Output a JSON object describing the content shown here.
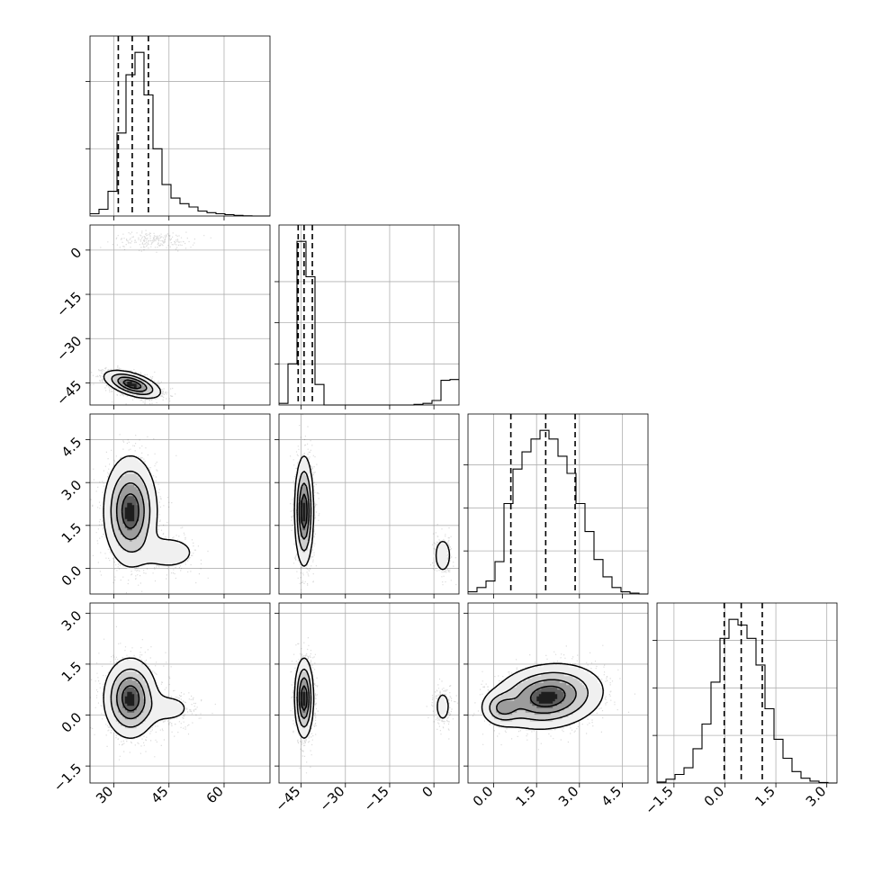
{
  "chart_data": {
    "type": "corner",
    "colors": {
      "line": "#000000",
      "grid": "#b0b0b0",
      "points": "#000000",
      "shade_dark": "#000000",
      "shade_light": "#f2f2f2"
    },
    "grid": true,
    "parameters": [
      {
        "index": 0,
        "range": [
          23.5,
          72.5
        ],
        "ticks": [
          30,
          45,
          60
        ],
        "tick_labels": [
          "30",
          "45",
          "60"
        ]
      },
      {
        "index": 1,
        "range": [
          -52.5,
          8.5
        ],
        "ticks": [
          -45,
          -30,
          -15,
          0
        ],
        "tick_labels": [
          "−45",
          "−30",
          "−15",
          "0"
        ]
      },
      {
        "index": 2,
        "range": [
          -0.9,
          5.4
        ],
        "ticks": [
          0.0,
          1.5,
          3.0,
          4.5
        ],
        "tick_labels": [
          "0.0",
          "1.5",
          "3.0",
          "4.5"
        ]
      },
      {
        "index": 3,
        "range": [
          -2.0,
          3.3
        ],
        "ticks": [
          -1.5,
          0.0,
          1.5,
          3.0
        ],
        "tick_labels": [
          "−1.5",
          "0.0",
          "1.5",
          "3.0"
        ]
      }
    ],
    "histograms": [
      {
        "param": 0,
        "bin_edges": [
          23.5,
          25.95,
          28.4,
          30.85,
          33.3,
          35.75,
          38.2,
          40.65,
          43.1,
          45.55,
          48.0,
          50.45,
          52.9,
          55.35,
          57.8,
          60.25,
          62.7,
          65.15,
          67.6,
          70.05,
          72.5
        ],
        "counts": [
          10,
          30,
          110,
          370,
          630,
          730,
          540,
          300,
          140,
          80,
          55,
          40,
          22,
          15,
          10,
          6,
          3,
          1,
          0,
          0
        ],
        "quantiles": [
          31.2,
          35.0,
          39.4
        ],
        "y_ticks": [
          300,
          600
        ]
      },
      {
        "param": 1,
        "bin_edges": [
          -52.5,
          -49.45,
          -46.4,
          -43.35,
          -40.3,
          -37.25,
          -34.2,
          -31.15,
          -28.1,
          -25.05,
          -22.0,
          -18.95,
          -15.9,
          -12.85,
          -9.8,
          -6.75,
          -3.7,
          -0.65,
          2.4,
          5.45,
          8.5
        ],
        "counts": [
          20,
          500,
          1990,
          1560,
          250,
          0,
          0,
          0,
          0,
          0,
          0,
          0,
          0,
          0,
          0,
          8,
          20,
          55,
          300,
          310
        ],
        "quantiles": [
          -46.0,
          -44.0,
          -41.2
        ],
        "y_ticks": [
          500,
          1000,
          1500
        ]
      },
      {
        "param": 2,
        "bin_edges": [
          -0.9,
          -0.585,
          -0.27,
          0.045,
          0.36,
          0.675,
          0.99,
          1.305,
          1.62,
          1.935,
          2.25,
          2.565,
          2.88,
          3.195,
          3.51,
          3.825,
          4.14,
          4.455,
          4.77,
          5.085,
          5.4
        ],
        "counts": [
          10,
          30,
          60,
          150,
          420,
          580,
          660,
          720,
          760,
          720,
          640,
          560,
          420,
          290,
          160,
          80,
          30,
          10,
          4,
          0
        ],
        "quantiles": [
          0.6,
          1.82,
          2.85
        ],
        "y_ticks": [
          200,
          400,
          600
        ]
      },
      {
        "param": 3,
        "bin_edges": [
          -2.0,
          -1.735,
          -1.47,
          -1.205,
          -0.94,
          -0.675,
          -0.41,
          -0.145,
          0.12,
          0.385,
          0.65,
          0.915,
          1.18,
          1.445,
          1.71,
          1.975,
          2.24,
          2.505,
          2.77,
          3.035,
          3.3
        ],
        "counts": [
          5,
          20,
          45,
          80,
          180,
          310,
          530,
          760,
          860,
          830,
          760,
          620,
          390,
          230,
          130,
          60,
          25,
          10,
          3,
          0
        ],
        "quantiles": [
          -0.02,
          0.48,
          1.1
        ],
        "y_ticks": [
          250,
          500,
          750
        ]
      }
    ],
    "pairs": [
      {
        "x": 0,
        "y": 1,
        "clusters": [
          {
            "cx": 35.0,
            "cy": -45.5,
            "sx": 3.6,
            "sy": 2.2,
            "rho": -0.55,
            "weight": 0.9
          },
          {
            "cx": 41.0,
            "cy": 3.5,
            "sx": 5.5,
            "sy": 1.4,
            "rho": 0.0,
            "weight": 0.1
          }
        ]
      },
      {
        "x": 0,
        "y": 2,
        "clusters": [
          {
            "cx": 34.5,
            "cy": 2.0,
            "sx": 3.4,
            "sy": 0.9,
            "rho": 0.0,
            "weight": 0.9
          },
          {
            "cx": 45.0,
            "cy": 0.55,
            "sx": 4.5,
            "sy": 0.35,
            "rho": 0.0,
            "weight": 0.1
          }
        ]
      },
      {
        "x": 1,
        "y": 2,
        "clusters": [
          {
            "cx": -44.0,
            "cy": 2.0,
            "sx": 1.5,
            "sy": 0.9,
            "rho": 0.0,
            "weight": 0.9
          },
          {
            "cx": 3.0,
            "cy": 0.45,
            "sx": 1.6,
            "sy": 0.35,
            "rho": 0.0,
            "weight": 0.1
          }
        ]
      },
      {
        "x": 0,
        "y": 3,
        "clusters": [
          {
            "cx": 34.5,
            "cy": 0.5,
            "sx": 3.4,
            "sy": 0.55,
            "rho": 0.0,
            "weight": 0.9
          },
          {
            "cx": 45.0,
            "cy": 0.2,
            "sx": 4.5,
            "sy": 0.3,
            "rho": 0.0,
            "weight": 0.1
          }
        ]
      },
      {
        "x": 1,
        "y": 3,
        "clusters": [
          {
            "cx": -44.0,
            "cy": 0.5,
            "sx": 1.5,
            "sy": 0.55,
            "rho": 0.0,
            "weight": 0.9
          },
          {
            "cx": 3.0,
            "cy": 0.25,
            "sx": 1.6,
            "sy": 0.3,
            "rho": 0.0,
            "weight": 0.1
          }
        ]
      },
      {
        "x": 2,
        "y": 3,
        "clusters": [
          {
            "cx": 1.9,
            "cy": 0.55,
            "sx": 0.9,
            "sy": 0.45,
            "rho": 0.15,
            "weight": 0.9
          },
          {
            "cx": 0.3,
            "cy": 0.2,
            "sx": 0.35,
            "sy": 0.25,
            "rho": 0.0,
            "weight": 0.1
          }
        ]
      }
    ]
  }
}
